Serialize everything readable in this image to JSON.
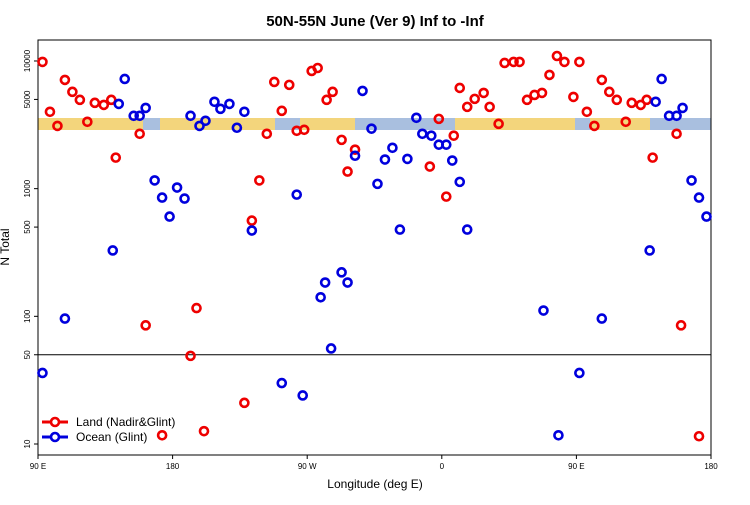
{
  "chart_data": {
    "type": "scatter",
    "title": "50N-55N June (Ver 9)   Inf to -Inf",
    "x_label": "Longitude (deg E)",
    "y_label": "N Total",
    "yscale": "log",
    "grid": false,
    "legend": "lower left",
    "xlim": [
      90,
      540
    ],
    "xticks": [
      {
        "value": 90,
        "label": "90 E"
      },
      180,
      {
        "value": 270,
        "label": "90 W"
      },
      {
        "value": 360,
        "label": "0"
      },
      {
        "value": 450,
        "label": "90 E"
      },
      {
        "value": 540,
        "label": "180"
      }
    ],
    "ylim": [
      8.2,
      14600
    ],
    "yticks": [
      10,
      50,
      100,
      500,
      1000,
      5000,
      10000
    ],
    "reference_line": 50,
    "series": [
      {
        "name": "Land (Nadir&Glint)",
        "color": "#ee0000",
        "x": [
          93,
          98,
          103,
          108,
          113,
          118,
          123,
          128,
          134,
          139,
          142,
          158,
          162,
          173,
          192,
          196,
          201,
          228,
          233,
          238,
          243,
          248,
          253,
          258,
          263,
          268,
          273,
          277,
          283,
          287,
          293,
          297,
          302,
          352,
          358,
          363,
          368,
          372,
          377,
          382,
          388,
          392,
          398,
          402,
          408,
          412,
          417,
          422,
          427,
          432,
          437,
          442,
          448,
          452,
          457,
          462,
          467,
          472,
          477,
          483,
          487,
          493,
          497,
          501,
          517,
          520,
          532
        ],
        "values": [
          9830,
          4000,
          3100,
          7110,
          5730,
          4960,
          3340,
          4700,
          4530,
          4960,
          1750,
          2690,
          85,
          11.7,
          49,
          116,
          12.6,
          21,
          562,
          1160,
          2690,
          6850,
          4070,
          6500,
          2840,
          2890,
          8350,
          8810,
          4960,
          5730,
          2410,
          1360,
          2020,
          1490,
          3520,
          866,
          2600,
          6150,
          4370,
          5050,
          5620,
          4370,
          3220,
          9650,
          9830,
          9830,
          4960,
          5420,
          5620,
          7780,
          10940,
          9830,
          5230,
          9830,
          4000,
          3100,
          7110,
          5730,
          4960,
          3340,
          4700,
          4530,
          4960,
          1750,
          2690,
          85,
          11.5
        ]
      },
      {
        "name": "Ocean (Glint)",
        "color": "#0000dd",
        "x": [
          93,
          108,
          140,
          144,
          148,
          154,
          158,
          162,
          168,
          173,
          178,
          183,
          188,
          192,
          198,
          202,
          208,
          212,
          218,
          223,
          228,
          233,
          253,
          263,
          267,
          279,
          282,
          286,
          293,
          297,
          302,
          307,
          313,
          317,
          322,
          327,
          332,
          337,
          343,
          347,
          353,
          358,
          363,
          367,
          372,
          377,
          428,
          438,
          452,
          467,
          499,
          503,
          507,
          512,
          517,
          521,
          527,
          532,
          537
        ],
        "values": [
          36,
          96,
          328,
          4610,
          7230,
          3720,
          3720,
          4290,
          1160,
          851,
          604,
          1020,
          836,
          3720,
          3100,
          3400,
          4790,
          4220,
          4610,
          3000,
          4000,
          470,
          30,
          898,
          24,
          141,
          184,
          56,
          221,
          184,
          1810,
          5830,
          2950,
          1090,
          1690,
          2090,
          478,
          1710,
          3590,
          2690,
          2600,
          2210,
          2210,
          1660,
          1130,
          478,
          111,
          11.7,
          36,
          96,
          328,
          4790,
          7230,
          3720,
          3720,
          4290,
          1160,
          851,
          604
        ]
      }
    ]
  }
}
